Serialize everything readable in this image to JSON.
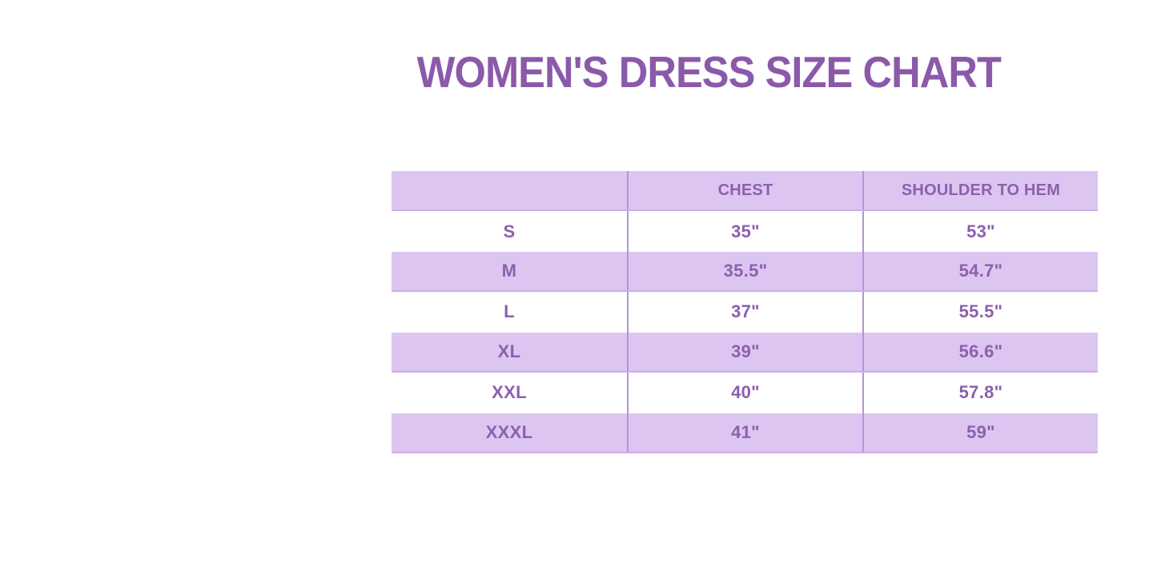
{
  "title": "WOMEN'S DRESS SIZE CHART",
  "chart_data": {
    "type": "table",
    "title": "WOMEN'S DRESS SIZE CHART",
    "columns": [
      "",
      "CHEST",
      "SHOULDER TO HEM"
    ],
    "rows": [
      [
        "S",
        "35\"",
        "53\""
      ],
      [
        "M",
        "35.5\"",
        "54.7\""
      ],
      [
        "L",
        "37\"",
        "55.5\""
      ],
      [
        "XL",
        "39\"",
        "56.6\""
      ],
      [
        "XXL",
        "40\"",
        "57.8\""
      ],
      [
        "XXXL",
        "41\"",
        "59\""
      ]
    ],
    "layout": {
      "row_striping": "header and even rows lavender, odd rows white",
      "column_alignment": "center",
      "grid": "vertical dividers between columns only"
    }
  },
  "colors": {
    "background": "#ffffff",
    "title_text": "#8b59aa",
    "table_text": "#8d5fad",
    "row_lavender": "#dcc6f1",
    "row_white": "#ffffff",
    "column_divider": "#b793d6",
    "lavender_row_bottom_border": "#cbaee4"
  }
}
